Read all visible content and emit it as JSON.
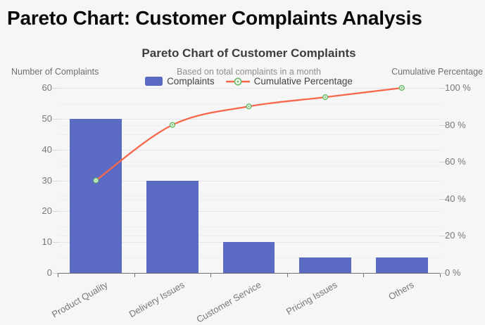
{
  "page": {
    "title": "Pareto Chart: Customer Complaints Analysis"
  },
  "chart": {
    "title": "Pareto Chart of Customer Complaints",
    "subtitle": "Based on total complaints in a month",
    "legend": {
      "complaints_label": "Complaints",
      "cumulative_label": "Cumulative Percentage"
    },
    "left_axis_title": "Number of Complaints",
    "right_axis_title": "Cumulative Percentage"
  },
  "chart_data": {
    "type": "bar",
    "subtype": "pareto-combo",
    "title": "Pareto Chart of Customer Complaints",
    "subtitle": "Based on total complaints in a month",
    "categories": [
      "Product Quality",
      "Delivery Issues",
      "Customer Service",
      "Pricing Issues",
      "Others"
    ],
    "series": [
      {
        "name": "Complaints",
        "type": "bar",
        "axis": "left",
        "values": [
          50,
          30,
          10,
          5,
          5
        ],
        "color": "#5b6bc4"
      },
      {
        "name": "Cumulative Percentage",
        "type": "line",
        "axis": "right",
        "values": [
          50,
          80,
          90,
          95,
          100
        ],
        "unit": "%",
        "color": "#f7674a",
        "marker_color": "#6cbe6c"
      }
    ],
    "left_axis": {
      "title": "Number of Complaints",
      "min": 0,
      "max": 60,
      "major_step": 10,
      "minor_step": 5,
      "tick_labels": [
        "0",
        "10",
        "20",
        "30",
        "40",
        "50",
        "60"
      ]
    },
    "right_axis": {
      "title": "Cumulative Percentage",
      "min": 0,
      "max": 100,
      "major_step": 20,
      "tick_labels": [
        "0 %",
        "20 %",
        "40 %",
        "60 %",
        "80 %",
        "100 %"
      ]
    },
    "legend_position": "top-center",
    "grid": true
  },
  "colors": {
    "bar": "#5b6bc4",
    "line": "#f7674a",
    "marker_ring": "#6cbe6c",
    "marker_fill": "#ffffff",
    "grid_major": "#e2e5f0",
    "grid_minor": "#eeeef5",
    "axis_line": "#73737a",
    "background": "#f6f6f7",
    "title_text": "#0a0a0a",
    "tick_text": "#77777c"
  }
}
